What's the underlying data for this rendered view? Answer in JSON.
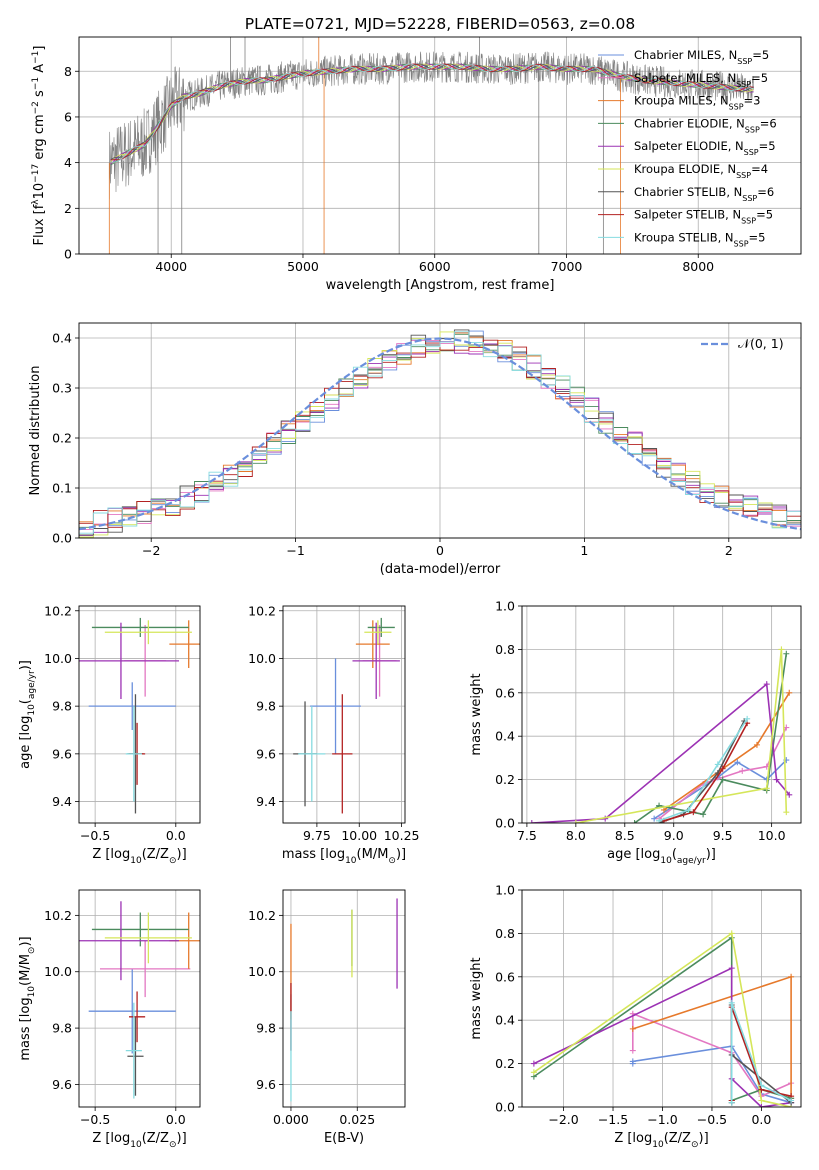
{
  "colors": {
    "chabrier_miles": "#6a8fdc",
    "salpeter_miles": "#e377c2",
    "kroupa_miles": "#e6792b",
    "chabrier_elodie": "#4b8b5e",
    "salpeter_elodie": "#9c32b4",
    "kroupa_elodie": "#d5e65a",
    "chabrier_stelib": "#555555",
    "salpeter_stelib": "#b22222",
    "kroupa_stelib": "#86dbe0",
    "data": "#808080",
    "normal": "#6a8fdc"
  },
  "chart_data": [
    {
      "id": "spectrum",
      "type": "line",
      "title": "PLATE=0721, MJD=52228, FIBERID=0563, z=0.08",
      "xlabel": "wavelength [Angstrom, rest frame]",
      "ylabel_parts": [
        "Flux [f",
        "λ",
        "10",
        "−17",
        " erg cm",
        "−2",
        " s",
        "−1",
        " A",
        "−1",
        "]"
      ],
      "xlim": [
        3300,
        8780
      ],
      "ylim": [
        0,
        9.5
      ],
      "xticks": [
        4000,
        5000,
        6000,
        7000,
        8000
      ],
      "yticks": [
        0,
        2,
        4,
        6,
        8
      ],
      "legend_position": "right",
      "legend": [
        {
          "label": "Chabrier MILES, N",
          "sub": "SSP",
          "suffix": "=5"
        },
        {
          "label": "Salpeter MILES, N",
          "sub": "SSP",
          "suffix": "=5"
        },
        {
          "label": "Kroupa MILES, N",
          "sub": "SSP",
          "suffix": "=3"
        },
        {
          "label": "Chabrier ELODIE, N",
          "sub": "SSP",
          "suffix": "=6"
        },
        {
          "label": "Salpeter ELODIE, N",
          "sub": "SSP",
          "suffix": "=5"
        },
        {
          "label": "Kroupa ELODIE, N",
          "sub": "SSP",
          "suffix": "=4"
        },
        {
          "label": "Chabrier STELIB, N",
          "sub": "SSP",
          "suffix": "=6"
        },
        {
          "label": "Salpeter STELIB, N",
          "sub": "SSP",
          "suffix": "=5"
        },
        {
          "label": "Kroupa STELIB, N",
          "sub": "SSP",
          "suffix": "=5"
        }
      ],
      "continuum": {
        "x": [
          3500,
          3600,
          3700,
          3800,
          3900,
          4000,
          4100,
          4200,
          4300,
          4400,
          4500,
          4600,
          4700,
          4800,
          4900,
          5000,
          5200,
          5400,
          5600,
          5800,
          6000,
          6200,
          6400,
          6600,
          6800,
          7000,
          7200,
          7400,
          7600,
          7800,
          8000,
          8200,
          8400
        ],
        "y": [
          3.9,
          4.2,
          4.5,
          4.8,
          5.6,
          6.5,
          6.9,
          7.0,
          7.2,
          7.4,
          7.5,
          7.6,
          7.6,
          7.7,
          7.8,
          7.9,
          8.0,
          8.1,
          8.1,
          8.2,
          8.2,
          8.2,
          8.1,
          8.1,
          8.2,
          8.1,
          8.1,
          7.8,
          7.6,
          7.5,
          7.4,
          7.3,
          7.2
        ]
      }
    },
    {
      "id": "residuals",
      "type": "histogram",
      "xlabel": "(data-model)/error",
      "ylabel": "Normed distribution",
      "xlim": [
        -2.5,
        2.5
      ],
      "ylim": [
        0,
        0.43
      ],
      "xticks": [
        -2,
        -1,
        0,
        1,
        2
      ],
      "yticks": [
        0,
        0.1,
        0.2,
        0.3,
        0.4
      ],
      "legend": "𝒩(0, 1)",
      "legend_position": "top-right",
      "bins": {
        "start": -2.5,
        "width": 0.1,
        "count": 50
      }
    },
    {
      "id": "age-vs-Z",
      "type": "errorbar",
      "xlabel_parts": [
        "Z [log",
        "10",
        "(Z/Z",
        "⊙",
        ")]"
      ],
      "ylabel_parts": [
        "age  [log",
        "10",
        "(",
        "age/yr",
        ")]"
      ],
      "xlim": [
        -0.6,
        0.15
      ],
      "ylim": [
        9.31,
        10.22
      ],
      "xticks": [
        -0.5,
        0.0
      ],
      "yticks": [
        9.4,
        9.6,
        9.8,
        10.0,
        10.2
      ],
      "points": [
        {
          "series": "chabrier_miles",
          "x": -0.27,
          "xerr": 0.27,
          "y": 9.8,
          "yerr": 0.1
        },
        {
          "series": "salpeter_miles",
          "x": -0.19,
          "xerr": 0.13,
          "y": 9.99,
          "yerr": 0.15
        },
        {
          "series": "kroupa_miles",
          "x": 0.08,
          "xerr": 0.12,
          "y": 10.06,
          "yerr": 0.1
        },
        {
          "series": "chabrier_elodie",
          "x": -0.22,
          "xerr": 0.3,
          "y": 10.13,
          "yerr": 0.04
        },
        {
          "series": "salpeter_elodie",
          "x": -0.34,
          "xerr": 0.36,
          "y": 9.99,
          "yerr": 0.16
        },
        {
          "series": "kroupa_elodie",
          "x": -0.17,
          "xerr": 0.27,
          "y": 10.11,
          "yerr": 0.05
        },
        {
          "series": "chabrier_stelib",
          "x": -0.25,
          "xerr": 0.05,
          "y": 9.6,
          "yerr": 0.25
        },
        {
          "series": "salpeter_stelib",
          "x": -0.24,
          "xerr": 0.05,
          "y": 9.6,
          "yerr": 0.13
        },
        {
          "series": "kroupa_stelib",
          "x": -0.26,
          "xerr": 0.05,
          "y": 9.6,
          "yerr": 0.2
        }
      ]
    },
    {
      "id": "age-vs-mass",
      "type": "errorbar",
      "xlabel_parts": [
        "mass [log",
        "10",
        "(M/M",
        "⊙",
        ")]"
      ],
      "ylabel_parts": [],
      "xlim": [
        9.55,
        10.27
      ],
      "ylim": [
        9.31,
        10.22
      ],
      "xticks": [
        9.75,
        10.0,
        10.25
      ],
      "yticks": [
        9.4,
        9.6,
        9.8,
        10.0,
        10.2
      ],
      "points": [
        {
          "series": "chabrier_miles",
          "x": 9.86,
          "xerr": 0.15,
          "y": 9.8,
          "yerr": 0.2
        },
        {
          "series": "salpeter_miles",
          "x": 10.12,
          "xerr": 0.1,
          "y": 9.99,
          "yerr": 0.15
        },
        {
          "series": "kroupa_miles",
          "x": 10.08,
          "xerr": 0.1,
          "y": 10.06,
          "yerr": 0.1
        },
        {
          "series": "chabrier_elodie",
          "x": 10.13,
          "xerr": 0.08,
          "y": 10.13,
          "yerr": 0.04
        },
        {
          "series": "salpeter_elodie",
          "x": 10.1,
          "xerr": 0.14,
          "y": 9.99,
          "yerr": 0.16
        },
        {
          "series": "kroupa_elodie",
          "x": 10.11,
          "xerr": 0.08,
          "y": 10.11,
          "yerr": 0.05
        },
        {
          "series": "chabrier_stelib",
          "x": 9.68,
          "xerr": 0.07,
          "y": 9.6,
          "yerr": 0.22
        },
        {
          "series": "salpeter_stelib",
          "x": 9.9,
          "xerr": 0.06,
          "y": 9.6,
          "yerr": 0.25
        },
        {
          "series": "kroupa_stelib",
          "x": 9.72,
          "xerr": 0.08,
          "y": 9.6,
          "yerr": 0.2
        }
      ]
    },
    {
      "id": "weight-vs-age",
      "type": "line",
      "xlabel_parts": [
        "age  [log",
        "10",
        "(",
        "age/yr",
        ")]"
      ],
      "ylabel": "mass weight",
      "xlim": [
        7.45,
        10.3
      ],
      "ylim": [
        0,
        1
      ],
      "xticks": [
        7.5,
        8.0,
        8.5,
        9.0,
        9.5,
        10.0
      ],
      "yticks": [
        0,
        0.2,
        0.4,
        0.6,
        0.8,
        1.0
      ],
      "grid": true,
      "series": [
        {
          "series": "chabrier_miles",
          "x": [
            8.8,
            9.45,
            9.65,
            9.95,
            10.15
          ],
          "y": [
            0.02,
            0.21,
            0.28,
            0.2,
            0.29
          ]
        },
        {
          "series": "salpeter_miles",
          "x": [
            8.85,
            9.3,
            9.7,
            9.95,
            10.15
          ],
          "y": [
            0.02,
            0.18,
            0.24,
            0.26,
            0.44
          ]
        },
        {
          "series": "kroupa_miles",
          "x": [
            8.9,
            9.85,
            10.18
          ],
          "y": [
            0.06,
            0.36,
            0.6
          ]
        },
        {
          "series": "chabrier_elodie",
          "x": [
            8.6,
            8.85,
            9.3,
            9.5,
            9.95,
            10.15
          ],
          "y": [
            0.0,
            0.08,
            0.04,
            0.2,
            0.15,
            0.78
          ]
        },
        {
          "series": "salpeter_elodie",
          "x": [
            7.55,
            8.3,
            9.95,
            10.05,
            10.18
          ],
          "y": [
            0.0,
            0.02,
            0.64,
            0.2,
            0.13
          ]
        },
        {
          "series": "kroupa_elodie",
          "x": [
            8.0,
            9.95,
            10.1,
            10.15
          ],
          "y": [
            0.0,
            0.16,
            0.8,
            0.05
          ]
        },
        {
          "series": "chabrier_stelib",
          "x": [
            8.85,
            9.1,
            9.45,
            9.72
          ],
          "y": [
            0.0,
            0.04,
            0.23,
            0.47
          ]
        },
        {
          "series": "salpeter_stelib",
          "x": [
            8.9,
            9.2,
            9.5,
            9.75
          ],
          "y": [
            0.01,
            0.05,
            0.25,
            0.46
          ]
        },
        {
          "series": "kroupa_stelib",
          "x": [
            8.85,
            9.15,
            9.45,
            9.75
          ],
          "y": [
            0.01,
            0.06,
            0.27,
            0.48
          ]
        }
      ]
    },
    {
      "id": "mass-vs-Z",
      "type": "errorbar",
      "xlabel_parts": [
        "Z [log",
        "10",
        "(Z/Z",
        "⊙",
        ")]"
      ],
      "ylabel_parts": [
        "mass [log",
        "10",
        "(M/M",
        "⊙",
        ")]"
      ],
      "xlim": [
        -0.6,
        0.15
      ],
      "ylim": [
        9.52,
        10.29
      ],
      "xticks": [
        -0.5,
        0.0
      ],
      "yticks": [
        9.6,
        9.8,
        10.0,
        10.2
      ],
      "points": [
        {
          "series": "chabrier_miles",
          "x": -0.27,
          "xerr": 0.27,
          "y": 9.86,
          "yerr": 0.15
        },
        {
          "series": "salpeter_miles",
          "x": -0.19,
          "xerr": 0.28,
          "y": 10.01,
          "yerr": 0.1
        },
        {
          "series": "kroupa_miles",
          "x": 0.08,
          "xerr": 0.12,
          "y": 10.11,
          "yerr": 0.1
        },
        {
          "series": "chabrier_elodie",
          "x": -0.22,
          "xerr": 0.3,
          "y": 10.15,
          "yerr": 0.06
        },
        {
          "series": "salpeter_elodie",
          "x": -0.34,
          "xerr": 0.36,
          "y": 10.11,
          "yerr": 0.14
        },
        {
          "series": "kroupa_elodie",
          "x": -0.17,
          "xerr": 0.27,
          "y": 10.12,
          "yerr": 0.09
        },
        {
          "series": "chabrier_stelib",
          "x": -0.25,
          "xerr": 0.05,
          "y": 9.7,
          "yerr": 0.14
        },
        {
          "series": "salpeter_stelib",
          "x": -0.24,
          "xerr": 0.05,
          "y": 9.84,
          "yerr": 0.09
        },
        {
          "series": "kroupa_stelib",
          "x": -0.26,
          "xerr": 0.05,
          "y": 9.72,
          "yerr": 0.17
        }
      ]
    },
    {
      "id": "mass-vs-EBV",
      "type": "errorbar",
      "xlabel": "E(B-V)",
      "xlim": [
        -0.003,
        0.043
      ],
      "ylim": [
        9.52,
        10.29
      ],
      "xticks": [
        0.0,
        0.025
      ],
      "yticks": [
        9.6,
        9.8,
        10.0,
        10.2
      ],
      "points": [
        {
          "series": "chabrier_miles",
          "x": 0.0,
          "y": 9.82,
          "yerr": 0.1
        },
        {
          "series": "kroupa_miles",
          "x": 0.0,
          "y": 10.0,
          "yerr": 0.17
        },
        {
          "series": "chabrier_elodie",
          "x": 0.023,
          "y": 10.12,
          "yerr": 0.1
        },
        {
          "series": "salpeter_elodie",
          "x": 0.04,
          "y": 10.1,
          "yerr": 0.16
        },
        {
          "series": "kroupa_elodie",
          "x": 0.023,
          "y": 10.1,
          "yerr": 0.12
        },
        {
          "series": "salpeter_stelib",
          "x": 0.0,
          "y": 9.84,
          "yerr": 0.12
        },
        {
          "series": "kroupa_stelib",
          "x": 0.0,
          "y": 9.7,
          "yerr": 0.16
        }
      ]
    },
    {
      "id": "weight-vs-Z",
      "type": "line",
      "xlabel_parts": [
        "Z [log",
        "10",
        "(Z/Z",
        "⊙",
        ")]"
      ],
      "ylabel": "mass weight",
      "xlim": [
        -2.42,
        0.4
      ],
      "ylim": [
        0,
        1
      ],
      "xticks": [
        -2.0,
        -1.5,
        -1.0,
        -0.5,
        0.0
      ],
      "yticks": [
        0,
        0.2,
        0.4,
        0.6,
        0.8,
        1.0
      ],
      "grid": true,
      "series": [
        {
          "series": "chabrier_miles",
          "x": [
            -1.3,
            -1.3,
            -0.3,
            0.0,
            0.3
          ],
          "y": [
            0.2,
            0.21,
            0.28,
            0.06,
            0.02
          ]
        },
        {
          "series": "salpeter_miles",
          "x": [
            -1.3,
            -1.3,
            -0.3,
            0.0,
            0.3
          ],
          "y": [
            0.26,
            0.43,
            0.25,
            0.05,
            0.11
          ]
        },
        {
          "series": "kroupa_miles",
          "x": [
            -1.3,
            0.3,
            0.3
          ],
          "y": [
            0.36,
            0.6,
            0.04
          ]
        },
        {
          "series": "chabrier_elodie",
          "x": [
            -2.3,
            -0.3,
            -0.3,
            0.0,
            0.3
          ],
          "y": [
            0.14,
            0.78,
            0.03,
            0.08,
            0.04
          ]
        },
        {
          "series": "salpeter_elodie",
          "x": [
            -2.3,
            -0.3,
            -0.3,
            0.0,
            0.3
          ],
          "y": [
            0.2,
            0.64,
            0.13,
            0.0,
            0.02
          ]
        },
        {
          "series": "kroupa_elodie",
          "x": [
            -2.3,
            -0.3,
            0.0,
            0.3
          ],
          "y": [
            0.16,
            0.8,
            0.03,
            0.0
          ]
        },
        {
          "series": "chabrier_stelib",
          "x": [
            -0.3,
            -0.3,
            -0.3,
            0.3
          ],
          "y": [
            0.02,
            0.47,
            0.24,
            0.02
          ]
        },
        {
          "series": "salpeter_stelib",
          "x": [
            -0.3,
            -0.3,
            0.0,
            0.3
          ],
          "y": [
            0.03,
            0.46,
            0.08,
            0.05
          ]
        },
        {
          "series": "kroupa_stelib",
          "x": [
            -0.3,
            -0.3,
            0.0,
            0.3
          ],
          "y": [
            0.02,
            0.48,
            0.1,
            0.03
          ]
        }
      ]
    }
  ]
}
